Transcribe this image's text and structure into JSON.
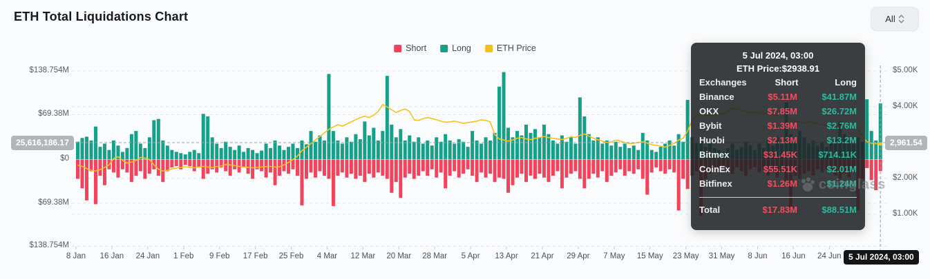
{
  "page": {
    "title": "ETH Total Liquidations Chart"
  },
  "controls": {
    "range_selector_label": "All"
  },
  "legend": [
    {
      "label": "Short",
      "color": "#F1445C"
    },
    {
      "label": "Long",
      "color": "#17A089"
    },
    {
      "label": "ETH Price",
      "color": "#F0BF1C"
    }
  ],
  "crosshair": {
    "left_value": "25,616,186.17",
    "right_value": "2,961.54",
    "date_label": "5 Jul 2024, 03:00"
  },
  "tooltip": {
    "title": "5 Jul 2024, 03:00",
    "subtitle": "ETH Price:$2938.91",
    "columns": [
      "Exchanges",
      "Short",
      "Long"
    ],
    "rows": [
      [
        "Binance",
        "$5.11M",
        "$41.87M"
      ],
      [
        "OKX",
        "$7.85M",
        "$26.72M"
      ],
      [
        "Bybit",
        "$1.39M",
        "$2.76M"
      ],
      [
        "Huobi",
        "$2.13M",
        "$13.2M"
      ],
      [
        "Bitmex",
        "$31.45K",
        "$714.11K"
      ],
      [
        "CoinEx",
        "$55.51K",
        "$2.01M"
      ],
      [
        "Bitfinex",
        "$1.26M",
        "$1.24M"
      ]
    ],
    "total": [
      "Total",
      "$17.83M",
      "$88.51M"
    ]
  },
  "watermark_text": "coinglass",
  "chart_data": {
    "type": "bar",
    "title": "ETH Total Liquidations Chart",
    "grid": "horizontal-dashed",
    "legend_position": "top-center",
    "x_tick_labels": [
      "8 Jan",
      "16 Jan",
      "24 Jan",
      "1 Feb",
      "9 Feb",
      "17 Feb",
      "25 Feb",
      "4 Mar",
      "12 Mar",
      "20 Mar",
      "28 Mar",
      "5 Apr",
      "13 Apr",
      "21 Apr",
      "29 Apr",
      "7 May",
      "15 May",
      "23 May",
      "31 May",
      "8 Jun",
      "16 Jun",
      "24 Jun"
    ],
    "x_range": [
      "8 Jan 2024",
      "5 Jul 2024, 03:00"
    ],
    "left_axis": {
      "labels": [
        "$138.754M",
        "$69.38M",
        "$0",
        "$69.38M",
        "$138.754M"
      ],
      "unit": "liquidations USD",
      "max_millions": 138.754
    },
    "right_axis": {
      "labels": [
        "$5.00K",
        "$4.00K",
        "$2.00K",
        "$1.00K"
      ],
      "unit": "ETH price USD",
      "range": [
        1000,
        5000
      ]
    },
    "series": [
      {
        "name": "Short",
        "kind": "bar-down",
        "color": "#F1445C",
        "unit": "M USD",
        "values": [
          30,
          45,
          64,
          18,
          70,
          25,
          40,
          15,
          20,
          28,
          15,
          20,
          35,
          25,
          18,
          30,
          22,
          15,
          25,
          35,
          18,
          12,
          10,
          15,
          8,
          10,
          18,
          12,
          30,
          22,
          15,
          20,
          12,
          18,
          25,
          15,
          20,
          12,
          22,
          30,
          15,
          18,
          28,
          20,
          40,
          25,
          18,
          22,
          15,
          25,
          72,
          30,
          20,
          28,
          18,
          25,
          30,
          73,
          25,
          20,
          28,
          22,
          30,
          25,
          35,
          22,
          28,
          20,
          25,
          30,
          52,
          35,
          60,
          28,
          22,
          30,
          25,
          18,
          25,
          15,
          28,
          20,
          45,
          25,
          18,
          28,
          22,
          15,
          25,
          35,
          20,
          28,
          22,
          35,
          28,
          30,
          52,
          40,
          28,
          22,
          35,
          25,
          30,
          22,
          28,
          35,
          25,
          18,
          45,
          28,
          22,
          18,
          30,
          45,
          30,
          22,
          28,
          18,
          35,
          25,
          20,
          15,
          25,
          18,
          22,
          15,
          30,
          55,
          20,
          12,
          18,
          22,
          15,
          20,
          80,
          30,
          46,
          25,
          18,
          88,
          30,
          22,
          15,
          20,
          12,
          15,
          22,
          12,
          18,
          25,
          15,
          12,
          20,
          15,
          25,
          18,
          28,
          20,
          35,
          75,
          25,
          30,
          22,
          18,
          25,
          15,
          20,
          15,
          18,
          25,
          30,
          22,
          28,
          20,
          80,
          30,
          13,
          32,
          48,
          17.83
        ]
      },
      {
        "name": "Long",
        "kind": "bar-up",
        "color": "#17A089",
        "unit": "M USD",
        "values": [
          28,
          34,
          36,
          30,
          52,
          20,
          25,
          15,
          30,
          22,
          12,
          18,
          40,
          45,
          25,
          18,
          35,
          62,
          64,
          30,
          22,
          15,
          12,
          10,
          8,
          12,
          15,
          10,
          72,
          68,
          35,
          25,
          18,
          28,
          20,
          15,
          22,
          12,
          18,
          15,
          10,
          14,
          25,
          18,
          30,
          22,
          15,
          20,
          25,
          18,
          30,
          24,
          45,
          28,
          38,
          30,
          135,
          45,
          30,
          25,
          35,
          28,
          40,
          32,
          60,
          38,
          50,
          30,
          45,
          132,
          55,
          35,
          48,
          30,
          38,
          28,
          35,
          25,
          30,
          22,
          35,
          28,
          40,
          30,
          25,
          32,
          28,
          20,
          45,
          30,
          25,
          35,
          30,
          42,
          115,
          138,
          50,
          35,
          45,
          38,
          55,
          42,
          48,
          35,
          55,
          40,
          30,
          25,
          38,
          28,
          35,
          25,
          98,
          68,
          40,
          30,
          35,
          25,
          30,
          22,
          28,
          20,
          25,
          18,
          22,
          15,
          42,
          30,
          15,
          12,
          20,
          25,
          30,
          22,
          40,
          28,
          94,
          35,
          25,
          30,
          20,
          25,
          18,
          15,
          12,
          18,
          25,
          15,
          20,
          28,
          22,
          15,
          25,
          18,
          30,
          22,
          35,
          25,
          90,
          40,
          30,
          45,
          35,
          25,
          30,
          22,
          28,
          20,
          25,
          32,
          60,
          40,
          30,
          25,
          35,
          28,
          95,
          45,
          30,
          88.51
        ]
      },
      {
        "name": "ETH Price",
        "kind": "line",
        "color": "#F5C31D",
        "unit": "USD",
        "values": [
          2340,
          2310,
          2250,
          2200,
          2180,
          2220,
          2280,
          2350,
          2530,
          2580,
          2480,
          2400,
          2430,
          2480,
          2560,
          2540,
          2500,
          2350,
          2230,
          2180,
          2200,
          2240,
          2260,
          2280,
          2300,
          2280,
          2270,
          2290,
          2310,
          2290,
          2280,
          2300,
          2320,
          2360,
          2350,
          2330,
          2310,
          2290,
          2280,
          2270,
          2280,
          2290,
          2300,
          2310,
          2290,
          2300,
          2350,
          2420,
          2500,
          2600,
          2750,
          2850,
          2950,
          3050,
          3150,
          3250,
          3350,
          3420,
          3480,
          3440,
          3500,
          3560,
          3620,
          3680,
          3720,
          3680,
          3750,
          3850,
          4050,
          3980,
          3900,
          3820,
          3880,
          3920,
          3850,
          3620,
          3600,
          3650,
          3680,
          3650,
          3620,
          3580,
          3550,
          3560,
          3580,
          3550,
          3520,
          3540,
          3560,
          3580,
          3620,
          3600,
          3560,
          3200,
          3080,
          3050,
          3020,
          3050,
          3100,
          3120,
          3080,
          3060,
          3100,
          3120,
          3150,
          3120,
          3100,
          3080,
          3060,
          3100,
          3140,
          3120,
          3180,
          3220,
          3160,
          3100,
          3060,
          3020,
          2980,
          3000,
          3050,
          3020,
          2980,
          2950,
          2960,
          2980,
          3000,
          2960,
          2920,
          2900,
          2880,
          2850,
          2900,
          2950,
          3050,
          3100,
          3300,
          3600,
          3750,
          3780,
          3760,
          3740,
          3760,
          3780,
          3800,
          3850,
          3950,
          3920,
          3880,
          3850,
          3820,
          3840,
          3820,
          3800,
          3780,
          3760,
          3740,
          3700,
          3650,
          3620,
          3580,
          3550,
          3520,
          3560,
          3540,
          3500,
          3480,
          3450,
          3420,
          3400,
          3440,
          3480,
          3460,
          3440,
          3380,
          3150,
          3000,
          2960,
          2950,
          2938.91
        ]
      }
    ]
  }
}
